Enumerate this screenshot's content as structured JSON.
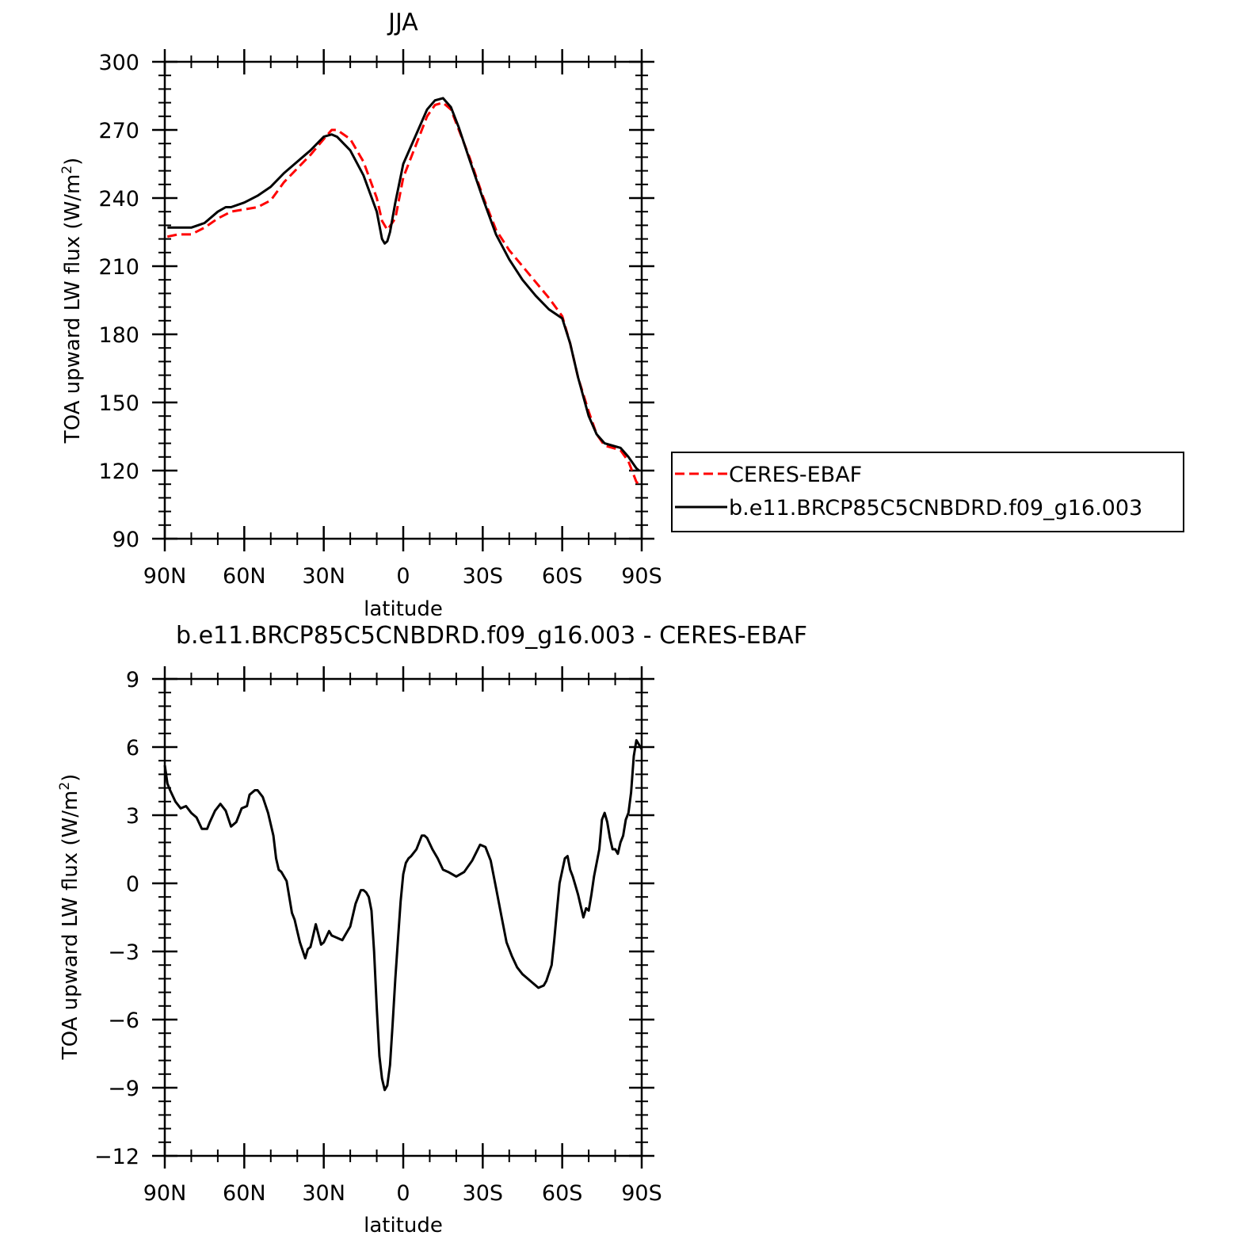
{
  "figure": {
    "background": "#ffffff",
    "colors": {
      "ceres": "#ff0000",
      "model": "#000000",
      "axes": "#000000"
    }
  },
  "chart_data": [
    {
      "type": "line",
      "title": "JJA",
      "xlabel": "latitude",
      "ylabel": "TOA upward LW flux (W/m",
      "ylabel_sup": "2",
      "ylabel_close": ")",
      "xlim": [
        90,
        -90
      ],
      "ylim": [
        90,
        300
      ],
      "x_ticks": [
        90,
        60,
        30,
        0,
        -30,
        -60,
        -90
      ],
      "x_tick_labels": [
        "90N",
        "60N",
        "30N",
        "0",
        "30S",
        "60S",
        "90S"
      ],
      "y_ticks": [
        90,
        120,
        150,
        180,
        210,
        240,
        270,
        300
      ],
      "y_tick_labels": [
        "90",
        "120",
        "150",
        "180",
        "210",
        "240",
        "270",
        "300"
      ],
      "legend": {
        "placement": "right"
      },
      "series": [
        {
          "name": "CERES-EBAF",
          "color": "#ff0000",
          "style": "dashed",
          "x": [
            89,
            85,
            80,
            75,
            70,
            65,
            60,
            55,
            50,
            45,
            40,
            35,
            30,
            27,
            25,
            20,
            15,
            10,
            8,
            6,
            3,
            0,
            -3,
            -6,
            -9,
            -12,
            -15,
            -18,
            -21,
            -25,
            -30,
            -35,
            -40,
            -45,
            -50,
            -55,
            -60,
            -63,
            -66,
            -70,
            -73,
            -76,
            -79,
            -82,
            -85,
            -88,
            -89
          ],
          "y": [
            223,
            224,
            224,
            227,
            231,
            234,
            235,
            236,
            239,
            247,
            253,
            259,
            266,
            270,
            270,
            266,
            256,
            240,
            230,
            226,
            231,
            249,
            258,
            267,
            276,
            281,
            282,
            279,
            270,
            258,
            241,
            226,
            217,
            210,
            203,
            196,
            188,
            176,
            161,
            146,
            136,
            131,
            130,
            129,
            124,
            115,
            114
          ]
        },
        {
          "name": "b.e11.BRCP85C5CNBDRD.f09_g16.003",
          "color": "#000000",
          "style": "solid",
          "x": [
            89,
            85,
            80,
            75,
            70,
            67,
            65,
            60,
            55,
            50,
            45,
            40,
            35,
            30,
            27,
            25,
            20,
            15,
            10,
            8,
            7,
            6,
            5,
            3,
            0,
            -3,
            -6,
            -9,
            -12,
            -15,
            -18,
            -21,
            -25,
            -30,
            -35,
            -40,
            -45,
            -50,
            -55,
            -60,
            -63,
            -66,
            -70,
            -73,
            -76,
            -79,
            -82,
            -85,
            -88,
            -89
          ],
          "y": [
            227,
            227,
            227,
            229,
            234,
            236,
            236,
            238,
            241,
            245,
            251,
            256,
            261,
            267,
            268,
            267,
            261,
            250,
            234,
            222,
            220,
            221,
            225,
            238,
            255,
            263,
            271,
            279,
            283,
            284,
            280,
            271,
            257,
            240,
            224,
            213,
            204,
            197,
            191,
            187,
            176,
            161,
            144,
            136,
            132,
            131,
            130,
            126,
            121,
            120
          ]
        }
      ]
    },
    {
      "type": "line",
      "title": "b.e11.BRCP85C5CNBDRD.f09_g16.003 - CERES-EBAF",
      "xlabel": "latitude",
      "ylabel": "TOA upward LW flux (W/m",
      "ylabel_sup": "2",
      "ylabel_close": ")",
      "xlim": [
        90,
        -90
      ],
      "ylim": [
        -12,
        9
      ],
      "x_ticks": [
        90,
        60,
        30,
        0,
        -30,
        -60,
        -90
      ],
      "x_tick_labels": [
        "90N",
        "60N",
        "30N",
        "0",
        "30S",
        "60S",
        "90S"
      ],
      "y_ticks": [
        -12,
        -9,
        -6,
        -3,
        0,
        3,
        6,
        9
      ],
      "y_tick_labels": [
        "−12",
        "−9",
        "−6",
        "−3",
        "0",
        "3",
        "6",
        "9"
      ],
      "series": [
        {
          "color": "#000000",
          "style": "solid",
          "x": [
            90,
            89,
            88,
            86,
            84,
            82,
            80,
            78,
            76,
            74,
            73,
            71,
            69,
            67,
            65,
            63,
            61,
            59,
            58,
            56,
            55,
            53,
            51,
            49,
            48,
            47,
            46,
            44,
            42,
            41,
            40,
            39,
            37,
            36,
            35,
            34,
            33,
            31,
            30,
            28,
            27,
            25,
            23,
            22,
            20,
            18,
            16,
            15,
            14,
            13,
            12,
            11,
            10,
            9,
            8,
            7,
            6,
            5,
            4,
            3,
            2,
            1,
            0,
            -1,
            -2,
            -3,
            -5,
            -7,
            -8,
            -9,
            -11,
            -13,
            -15,
            -17,
            -20,
            -23,
            -26,
            -29,
            -31,
            -33,
            -35,
            -37,
            -39,
            -41,
            -43,
            -45,
            -47,
            -49,
            -51,
            -53,
            -54,
            -56,
            -57,
            -58,
            -59,
            -61,
            -62,
            -63,
            -64,
            -65,
            -66,
            -68,
            -69,
            -70,
            -71,
            -72,
            -74,
            -75,
            -76,
            -77,
            -78,
            -79,
            -80,
            -81,
            -82,
            -83,
            -84,
            -85,
            -86,
            -87,
            -88,
            -89,
            -90
          ],
          "y": [
            5.2,
            4.4,
            4.1,
            3.6,
            3.3,
            3.4,
            3.1,
            2.9,
            2.4,
            2.4,
            2.7,
            3.2,
            3.5,
            3.2,
            2.5,
            2.7,
            3.3,
            3.4,
            3.9,
            4.1,
            4.1,
            3.8,
            3.1,
            2.1,
            1.1,
            0.6,
            0.5,
            0.1,
            -1.3,
            -1.6,
            -2.1,
            -2.6,
            -3.3,
            -2.9,
            -2.8,
            -2.3,
            -1.8,
            -2.7,
            -2.6,
            -2.1,
            -2.3,
            -2.4,
            -2.5,
            -2.3,
            -1.9,
            -0.9,
            -0.3,
            -0.3,
            -0.4,
            -0.6,
            -1.2,
            -3.0,
            -5.5,
            -7.6,
            -8.6,
            -9.1,
            -8.9,
            -8.0,
            -6.2,
            -4.2,
            -2.5,
            -0.8,
            0.4,
            0.9,
            1.1,
            1.2,
            1.5,
            2.1,
            2.1,
            2.0,
            1.5,
            1.1,
            0.6,
            0.5,
            0.3,
            0.5,
            1.0,
            1.7,
            1.6,
            1.0,
            -0.2,
            -1.4,
            -2.6,
            -3.2,
            -3.7,
            -4.0,
            -4.2,
            -4.4,
            -4.6,
            -4.5,
            -4.3,
            -3.6,
            -2.5,
            -1.2,
            0.0,
            1.1,
            1.2,
            0.6,
            0.3,
            -0.1,
            -0.5,
            -1.5,
            -1.1,
            -1.2,
            -0.5,
            0.3,
            1.5,
            2.8,
            3.1,
            2.7,
            2.0,
            1.5,
            1.5,
            1.3,
            1.8,
            2.1,
            2.8,
            3.1,
            4.0,
            5.6,
            6.3,
            6.1,
            5.9
          ]
        }
      ]
    }
  ]
}
